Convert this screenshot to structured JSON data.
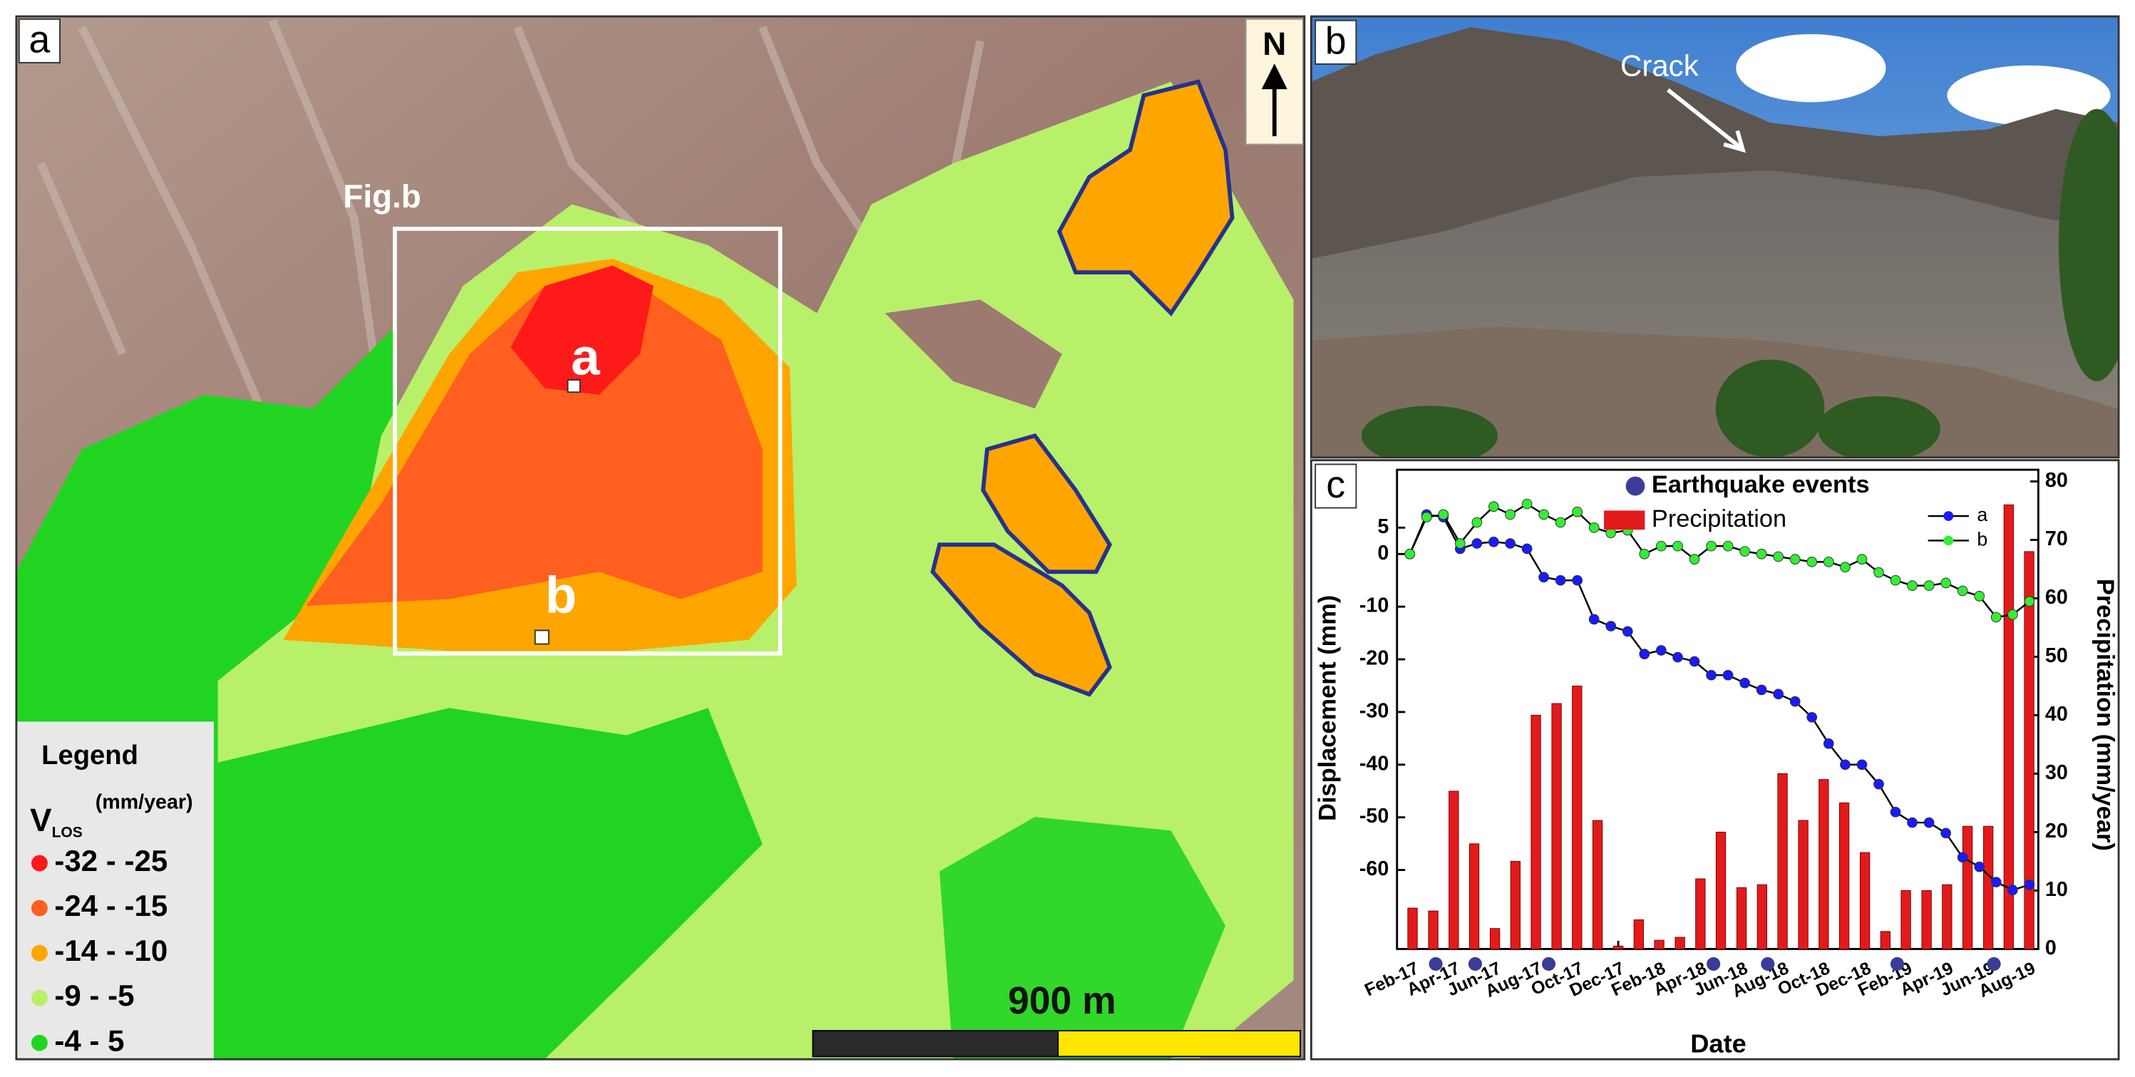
{
  "map": {
    "panel_label": "a",
    "box_label": "Fig.b",
    "point_labels": [
      "a",
      "b"
    ],
    "north": "N",
    "scale_label": "900 m",
    "legend": {
      "title": "Legend",
      "symbol": "V",
      "subscript": "LOS",
      "unit": "(mm/year)",
      "items": [
        {
          "label": "-32 - -25",
          "color": "#ff1a1a"
        },
        {
          "label": "-24 - -15",
          "color": "#ff5f1f"
        },
        {
          "label": "-14 - -10",
          "color": "#ffa500"
        },
        {
          "label": "-9 - -5",
          "color": "#b8f06a"
        },
        {
          "label": "-4 - 5",
          "color": "#22d422"
        }
      ]
    }
  },
  "photo": {
    "panel_label": "b",
    "annotation": "Crack"
  },
  "chart_data": {
    "type": "combo",
    "panel_label": "c",
    "xlabel": "Date",
    "ylabel": "Displacement (mm)",
    "y2label": "Precipitation (mm/year)",
    "xlim": [
      2017.02,
      2019.62
    ],
    "xticks": [
      {
        "value": 2017.083,
        "label": "Feb-17"
      },
      {
        "value": 2017.25,
        "label": "Apr-17"
      },
      {
        "value": 2017.417,
        "label": "Jun-17"
      },
      {
        "value": 2017.583,
        "label": "Aug-17"
      },
      {
        "value": 2017.75,
        "label": "Oct-17"
      },
      {
        "value": 2017.917,
        "label": "Dec-17"
      },
      {
        "value": 2018.083,
        "label": "Feb-18"
      },
      {
        "value": 2018.25,
        "label": "Apr-18"
      },
      {
        "value": 2018.417,
        "label": "Jun-18"
      },
      {
        "value": 2018.583,
        "label": "Aug-18"
      },
      {
        "value": 2018.75,
        "label": "Oct-18"
      },
      {
        "value": 2018.917,
        "label": "Dec-18"
      },
      {
        "value": 2019.083,
        "label": "Feb-19"
      },
      {
        "value": 2019.25,
        "label": "Apr-19"
      },
      {
        "value": 2019.417,
        "label": "Jun-19"
      },
      {
        "value": 2019.583,
        "label": "Aug-19"
      }
    ],
    "ylim": [
      -75,
      16
    ],
    "yticks": [
      5,
      0,
      -10,
      -20,
      -30,
      -40,
      -50,
      -60
    ],
    "y2lim": [
      0,
      82
    ],
    "y2ticks": [
      0,
      10,
      20,
      30,
      40,
      50,
      60,
      70,
      80
    ],
    "series": [
      {
        "name": "Precipitation",
        "type": "bar",
        "axis": "y2",
        "color": "#e31a1c",
        "x": [
          2017.083,
          2017.167,
          2017.25,
          2017.333,
          2017.417,
          2017.5,
          2017.583,
          2017.667,
          2017.75,
          2017.833,
          2017.917,
          2018.0,
          2018.083,
          2018.167,
          2018.25,
          2018.333,
          2018.417,
          2018.5,
          2018.583,
          2018.667,
          2018.75,
          2018.833,
          2018.917,
          2019.0,
          2019.083,
          2019.167,
          2019.25,
          2019.333,
          2019.417,
          2019.5,
          2019.583
        ],
        "values": [
          7,
          6.5,
          27,
          18,
          3.5,
          15,
          40,
          42,
          45,
          22,
          0.5,
          5,
          1.5,
          2,
          12,
          20,
          10.5,
          11,
          30,
          22,
          29,
          25,
          16.5,
          3,
          10,
          10,
          11,
          21,
          21,
          76,
          68
        ]
      },
      {
        "name": "a",
        "type": "line",
        "color": "#1a1aff",
        "x": [
          2017.072,
          2017.14,
          2017.208,
          2017.276,
          2017.344,
          2017.412,
          2017.479,
          2017.547,
          2017.615,
          2017.683,
          2017.751,
          2017.819,
          2017.887,
          2017.955,
          2018.023,
          2018.091,
          2018.158,
          2018.226,
          2018.294,
          2018.362,
          2018.43,
          2018.498,
          2018.566,
          2018.634,
          2018.702,
          2018.77,
          2018.837,
          2018.905,
          2018.973,
          2019.041,
          2019.109,
          2019.177,
          2019.245,
          2019.313,
          2019.381,
          2019.449,
          2019.516,
          2019.584
        ],
        "values": [
          0,
          7.5,
          7,
          1,
          2,
          2.3,
          2,
          1,
          -4.4,
          -5,
          -5,
          -12.4,
          -13.7,
          -14.7,
          -19,
          -18.3,
          -19.6,
          -20.4,
          -23,
          -23,
          -24.5,
          -25.8,
          -26.6,
          -28,
          -31,
          -36,
          -40,
          -40,
          -43.7,
          -49,
          -51,
          -51,
          -53,
          -57.6,
          -59.4,
          -62.3,
          -63.8,
          -62.8
        ]
      },
      {
        "name": "b",
        "type": "line",
        "color": "#33ee33",
        "x": [
          2017.072,
          2017.14,
          2017.208,
          2017.276,
          2017.344,
          2017.412,
          2017.479,
          2017.547,
          2017.615,
          2017.683,
          2017.751,
          2017.819,
          2017.887,
          2017.955,
          2018.023,
          2018.091,
          2018.158,
          2018.226,
          2018.294,
          2018.362,
          2018.43,
          2018.498,
          2018.566,
          2018.634,
          2018.702,
          2018.77,
          2018.837,
          2018.905,
          2018.973,
          2019.041,
          2019.109,
          2019.177,
          2019.245,
          2019.313,
          2019.381,
          2019.449,
          2019.516,
          2019.584
        ],
        "values": [
          0,
          7,
          7.5,
          2,
          6,
          9,
          7.5,
          9.5,
          7.5,
          6,
          8,
          5,
          4,
          4.5,
          0,
          1.5,
          1.5,
          -1,
          1.5,
          1.5,
          0.5,
          0,
          -0.5,
          -1,
          -1.5,
          -1.5,
          -2.5,
          -1,
          -3.5,
          -5,
          -6,
          -6,
          -5.5,
          -7,
          -8,
          -12,
          -11.5,
          -9
        ]
      }
    ],
    "events": {
      "name": "Earthquake events",
      "color": "#3b3b9a",
      "x": [
        2017.177,
        2017.337,
        2017.635,
        2018.303,
        2018.523,
        2019.048,
        2019.44
      ]
    }
  }
}
